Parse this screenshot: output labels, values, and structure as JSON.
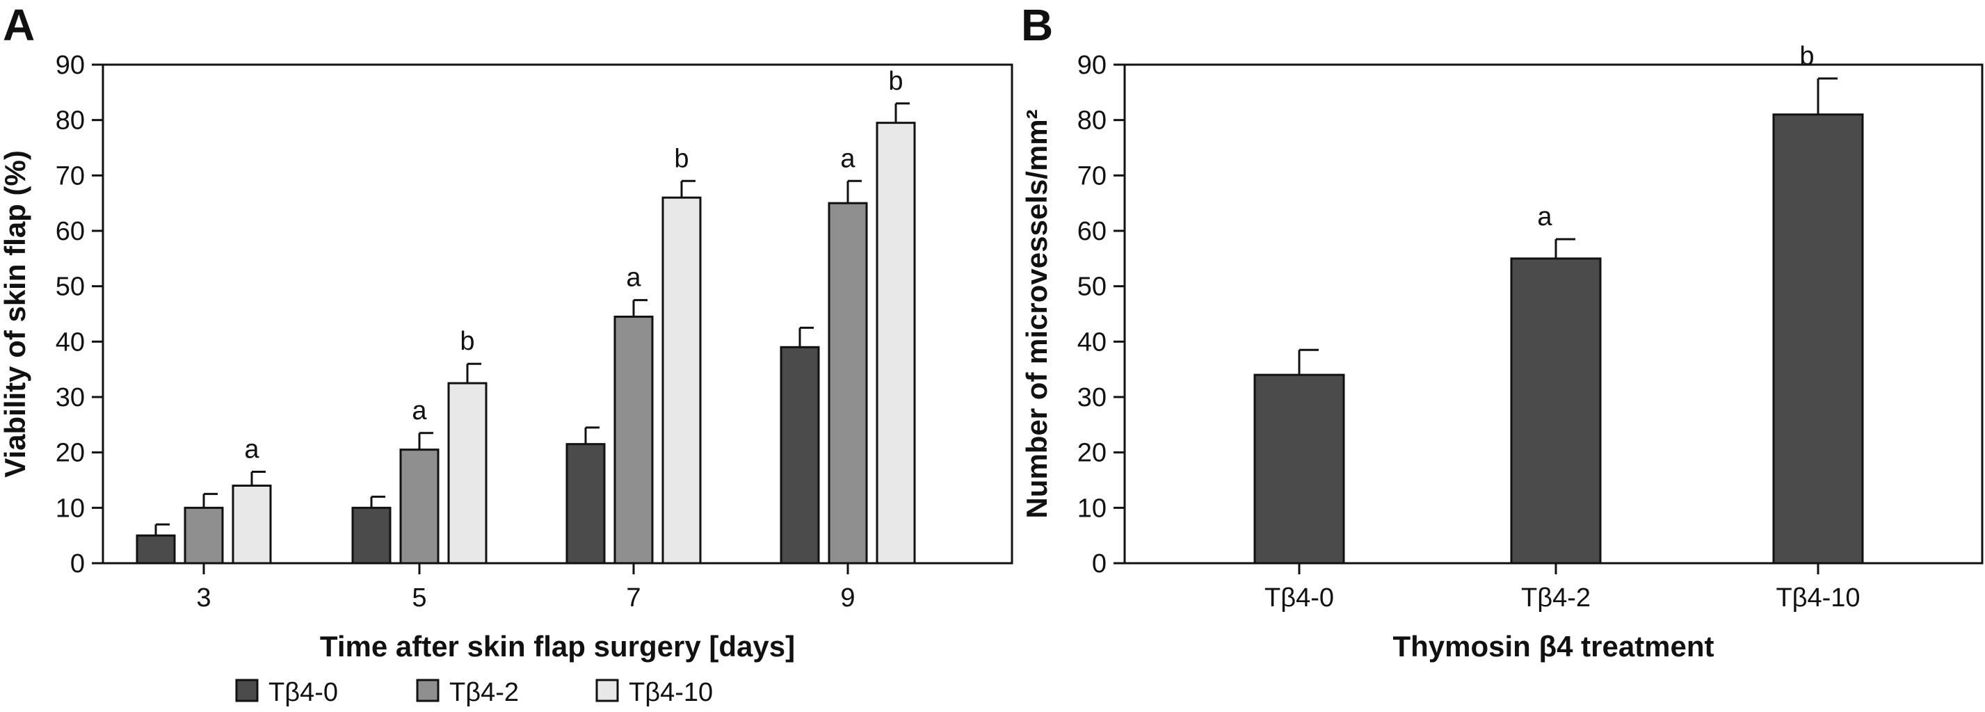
{
  "colors": {
    "tb4_0": "#4b4b4b",
    "tb4_2": "#8f8f8f",
    "tb4_10": "#e8e8e8",
    "axis": "#111111"
  },
  "chart_data": [
    {
      "panel_label": "A",
      "type": "bar",
      "xlabel": "Time after skin flap surgery [days]",
      "ylabel": "Viability of skin flap (%)",
      "ylim": [
        0,
        90
      ],
      "yticks": [
        0,
        10,
        20,
        30,
        40,
        50,
        60,
        70,
        80,
        90
      ],
      "categories": [
        "3",
        "5",
        "7",
        "9"
      ],
      "series": [
        {
          "name": "Tβ4-0",
          "color_key": "tb4_0",
          "values": [
            5,
            10,
            21.5,
            39
          ],
          "errors": [
            2,
            2,
            3,
            3.5
          ],
          "labels": [
            "",
            "",
            "",
            ""
          ]
        },
        {
          "name": "Tβ4-2",
          "color_key": "tb4_2",
          "values": [
            10,
            20.5,
            44.5,
            65
          ],
          "errors": [
            2.5,
            3,
            3,
            4
          ],
          "labels": [
            "",
            "a",
            "a",
            "a"
          ]
        },
        {
          "name": "Tβ4-10",
          "color_key": "tb4_10",
          "values": [
            14,
            32.5,
            66,
            79.5
          ],
          "errors": [
            2.5,
            3.5,
            3,
            3.5
          ],
          "labels": [
            "a",
            "b",
            "b",
            "b"
          ]
        }
      ],
      "legend": {
        "position": "bottom"
      }
    },
    {
      "panel_label": "B",
      "type": "bar",
      "xlabel": "Thymosin β4 treatment",
      "ylabel": "Number of microvessels/mm²",
      "ylim": [
        0,
        90
      ],
      "yticks": [
        0,
        10,
        20,
        30,
        40,
        50,
        60,
        70,
        80,
        90
      ],
      "categories": [
        "Tβ4-0",
        "Tβ4-2",
        "Tβ4-10"
      ],
      "values": [
        34,
        55,
        81
      ],
      "errors": [
        4.5,
        3.5,
        6.5
      ],
      "labels": [
        "",
        "a",
        "b"
      ],
      "color_key": "tb4_0"
    }
  ]
}
